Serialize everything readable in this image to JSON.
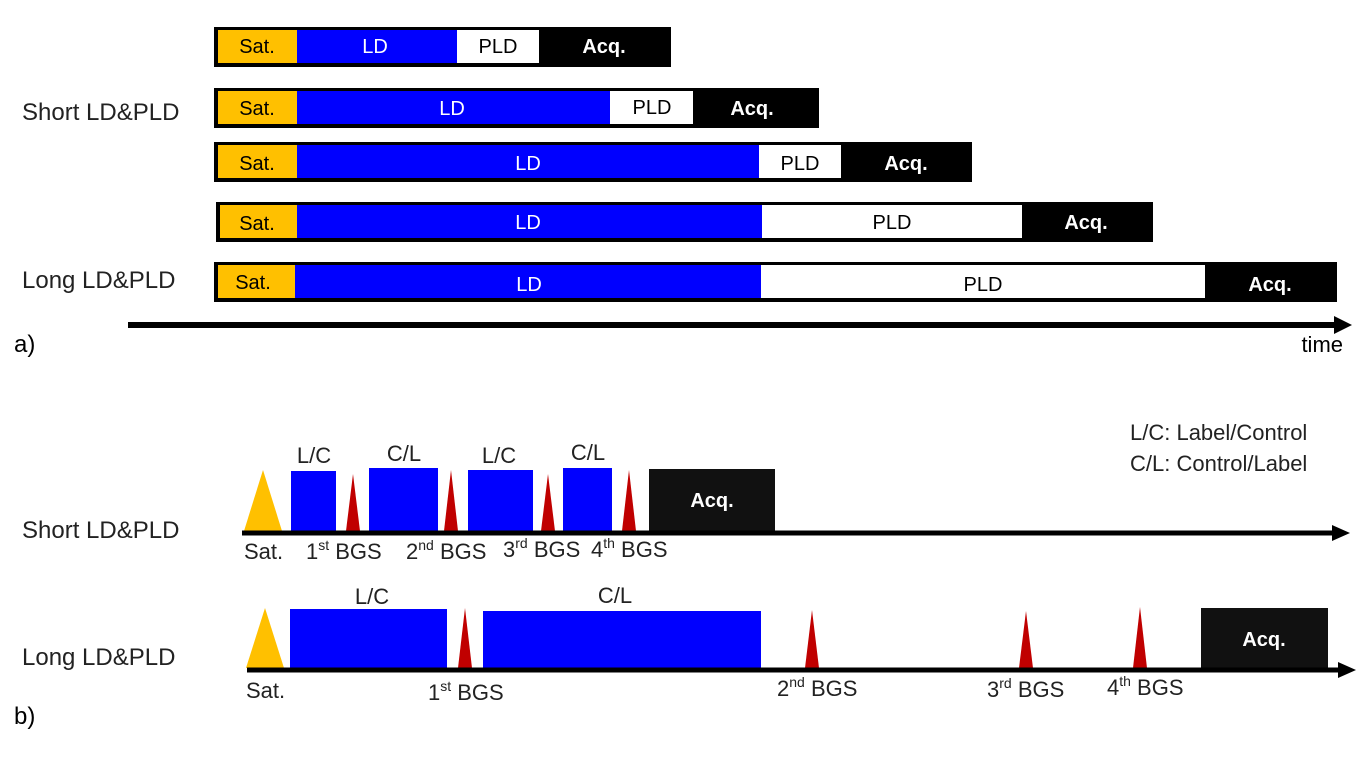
{
  "colors": {
    "sat": "#FFC000",
    "ld": "#0000FF",
    "pld": "#FFFFFF",
    "acq": "#000000",
    "acq_b": "#111111",
    "bgs": "#C00000",
    "text": "#222222"
  },
  "panel_a": {
    "rows": [
      {
        "label": "",
        "segments": [
          "Sat.",
          "LD",
          "PLD",
          "Acq."
        ]
      },
      {
        "label": "Short LD&PLD",
        "segments": [
          "Sat.",
          "LD",
          "PLD",
          "Acq."
        ]
      },
      {
        "label": "",
        "segments": [
          "Sat.",
          "LD",
          "PLD",
          "Acq."
        ]
      },
      {
        "label": "",
        "segments": [
          "Sat.",
          "LD",
          "PLD",
          "Acq."
        ]
      },
      {
        "label": "Long LD&PLD",
        "segments": [
          "Sat.",
          "LD",
          "PLD",
          "Acq."
        ]
      }
    ],
    "axis_label": "time",
    "panel_label": "a)"
  },
  "panel_b": {
    "legend": [
      "L/C: Label/Control",
      "C/L: Control/Label"
    ],
    "panel_label": "b)",
    "short": {
      "label": "Short LD&PLD",
      "sat_label": "Sat.",
      "blocks": [
        "L/C",
        "C/L",
        "L/C",
        "C/L"
      ],
      "acq": "Acq.",
      "bgs": [
        {
          "num": "1",
          "sup": "st",
          "text": " BGS"
        },
        {
          "num": "2",
          "sup": "nd",
          "text": " BGS"
        },
        {
          "num": "3",
          "sup": "rd",
          "text": " BGS"
        },
        {
          "num": "4",
          "sup": "th",
          "text": " BGS"
        }
      ]
    },
    "long": {
      "label": "Long LD&PLD",
      "sat_label": "Sat.",
      "blocks": [
        "L/C",
        "C/L"
      ],
      "acq": "Acq.",
      "bgs": [
        {
          "num": "1",
          "sup": "st",
          "text": " BGS"
        },
        {
          "num": "2",
          "sup": "nd",
          "text": " BGS"
        },
        {
          "num": "3",
          "sup": "rd",
          "text": " BGS"
        },
        {
          "num": "4",
          "sup": "th",
          "text": " BGS"
        }
      ]
    }
  }
}
